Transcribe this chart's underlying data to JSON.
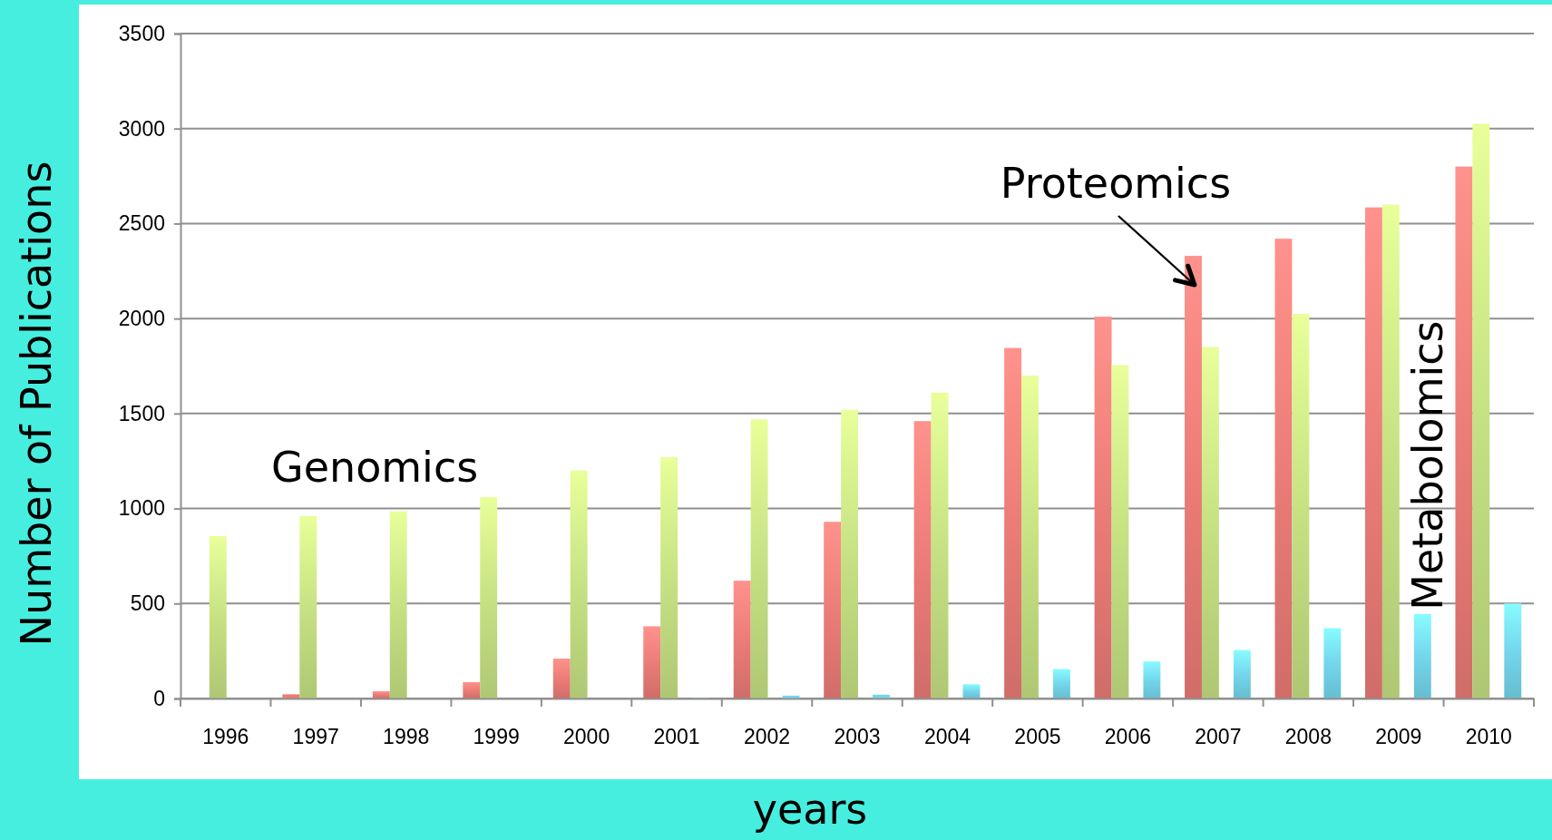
{
  "chart_data": {
    "type": "bar",
    "xlabel": "years",
    "ylabel": "Number of Publications",
    "categories": [
      "1996",
      "1997",
      "1998",
      "1999",
      "2000",
      "2001",
      "2002",
      "2003",
      "2004",
      "2005",
      "2006",
      "2007",
      "2008",
      "2009",
      "2010"
    ],
    "series": [
      {
        "name": "Proteomics",
        "color": "#ec7c77",
        "values": [
          null,
          22,
          38,
          86,
          210,
          380,
          620,
          930,
          1460,
          1845,
          2010,
          2330,
          2420,
          2585,
          2800
        ]
      },
      {
        "name": "Genomics",
        "color": "#c6e283",
        "values": [
          855,
          960,
          985,
          1060,
          1200,
          1270,
          1470,
          1520,
          1610,
          1700,
          1755,
          1850,
          2025,
          2600,
          3025
        ]
      },
      {
        "name": "Metabolomics",
        "color": "#74d6ec",
        "values": [
          null,
          null,
          null,
          null,
          null,
          3,
          15,
          20,
          75,
          155,
          195,
          255,
          370,
          445,
          500
        ]
      }
    ],
    "ylim": [
      0,
      3500
    ],
    "yticks": [
      0,
      500,
      1000,
      1500,
      2000,
      2500,
      3000,
      3500
    ],
    "grid": "y"
  }
}
